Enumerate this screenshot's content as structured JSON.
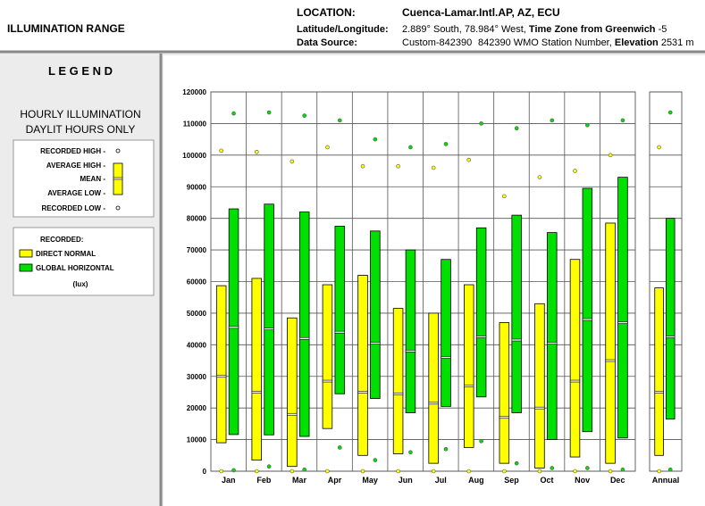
{
  "header": {
    "title": "ILLUMINATION RANGE",
    "location_label": "LOCATION:",
    "location": "Cuenca-Lamar.Intl.AP, AZ, ECU",
    "latlon_label": "Latitude/Longitude:",
    "latlon": "2.889° South, 78.984° West, ",
    "tz_label": "Time Zone from Greenwich",
    "tz": " -5",
    "source_label": "Data Source:",
    "source": "Custom-842390",
    "station": "842390 WMO Station Number, ",
    "elev_label": "Elevation",
    "elev": " 2531 m"
  },
  "legend": {
    "title": "L E G E N D",
    "subtitle1": "HOURLY ILLUMINATION",
    "subtitle2": "DAYLIT HOURS ONLY",
    "rec_high": "RECORDED HIGH -",
    "avg_high": "AVERAGE HIGH -",
    "mean": "MEAN -",
    "avg_low": "AVERAGE LOW -",
    "rec_low": "RECORDED LOW -",
    "recorded": "RECORDED:",
    "unit": "(lux)"
  },
  "chart_data": {
    "type": "range",
    "categories": [
      "Jan",
      "Feb",
      "Mar",
      "Apr",
      "May",
      "Jun",
      "Jul",
      "Aug",
      "Sep",
      "Oct",
      "Nov",
      "Dec",
      "Annual"
    ],
    "ylim": [
      0,
      120000
    ],
    "yticks": [
      0,
      10000,
      20000,
      30000,
      40000,
      50000,
      60000,
      70000,
      80000,
      90000,
      100000,
      110000,
      120000
    ],
    "grid": true,
    "series": [
      {
        "name": "DIRECT NORMAL",
        "color": "#ffff00",
        "avg_high": [
          58700,
          61000,
          48500,
          59000,
          62000,
          51500,
          50000,
          59000,
          47000,
          53000,
          67000,
          78500,
          58000
        ],
        "avg_low": [
          9000,
          3500,
          1500,
          13500,
          5000,
          5500,
          2500,
          7500,
          2500,
          1000,
          4500,
          2500,
          5000
        ],
        "mean": [
          30000,
          25000,
          18000,
          28500,
          25000,
          24500,
          21500,
          27000,
          17000,
          20000,
          28500,
          35000,
          25000
        ],
        "rec_high": [
          101400,
          101000,
          98000,
          102500,
          96500,
          96500,
          96000,
          98500,
          87000,
          93000,
          95000,
          100000,
          102500
        ],
        "rec_low": [
          0,
          0,
          0,
          0,
          0,
          0,
          0,
          0,
          0,
          0,
          0,
          0,
          0
        ]
      },
      {
        "name": "GLOBAL HORIZONTAL",
        "color": "#00e000",
        "avg_high": [
          83000,
          84500,
          82000,
          77500,
          76000,
          70000,
          67000,
          77000,
          81000,
          75500,
          89500,
          93000,
          80000
        ],
        "avg_low": [
          11600,
          11500,
          11000,
          24500,
          23000,
          18500,
          20500,
          23500,
          18500,
          10000,
          12500,
          10500,
          16500
        ],
        "mean": [
          45500,
          45000,
          42000,
          44000,
          40500,
          38000,
          36000,
          42500,
          41500,
          40500,
          48000,
          47000,
          42500
        ],
        "rec_high": [
          113200,
          113500,
          112500,
          111000,
          105000,
          102500,
          103500,
          110000,
          108500,
          111000,
          109500,
          111000,
          113500
        ],
        "rec_low": [
          300,
          1500,
          500,
          7500,
          3500,
          6000,
          7000,
          9500,
          2500,
          1000,
          1000,
          500,
          500
        ]
      }
    ]
  }
}
